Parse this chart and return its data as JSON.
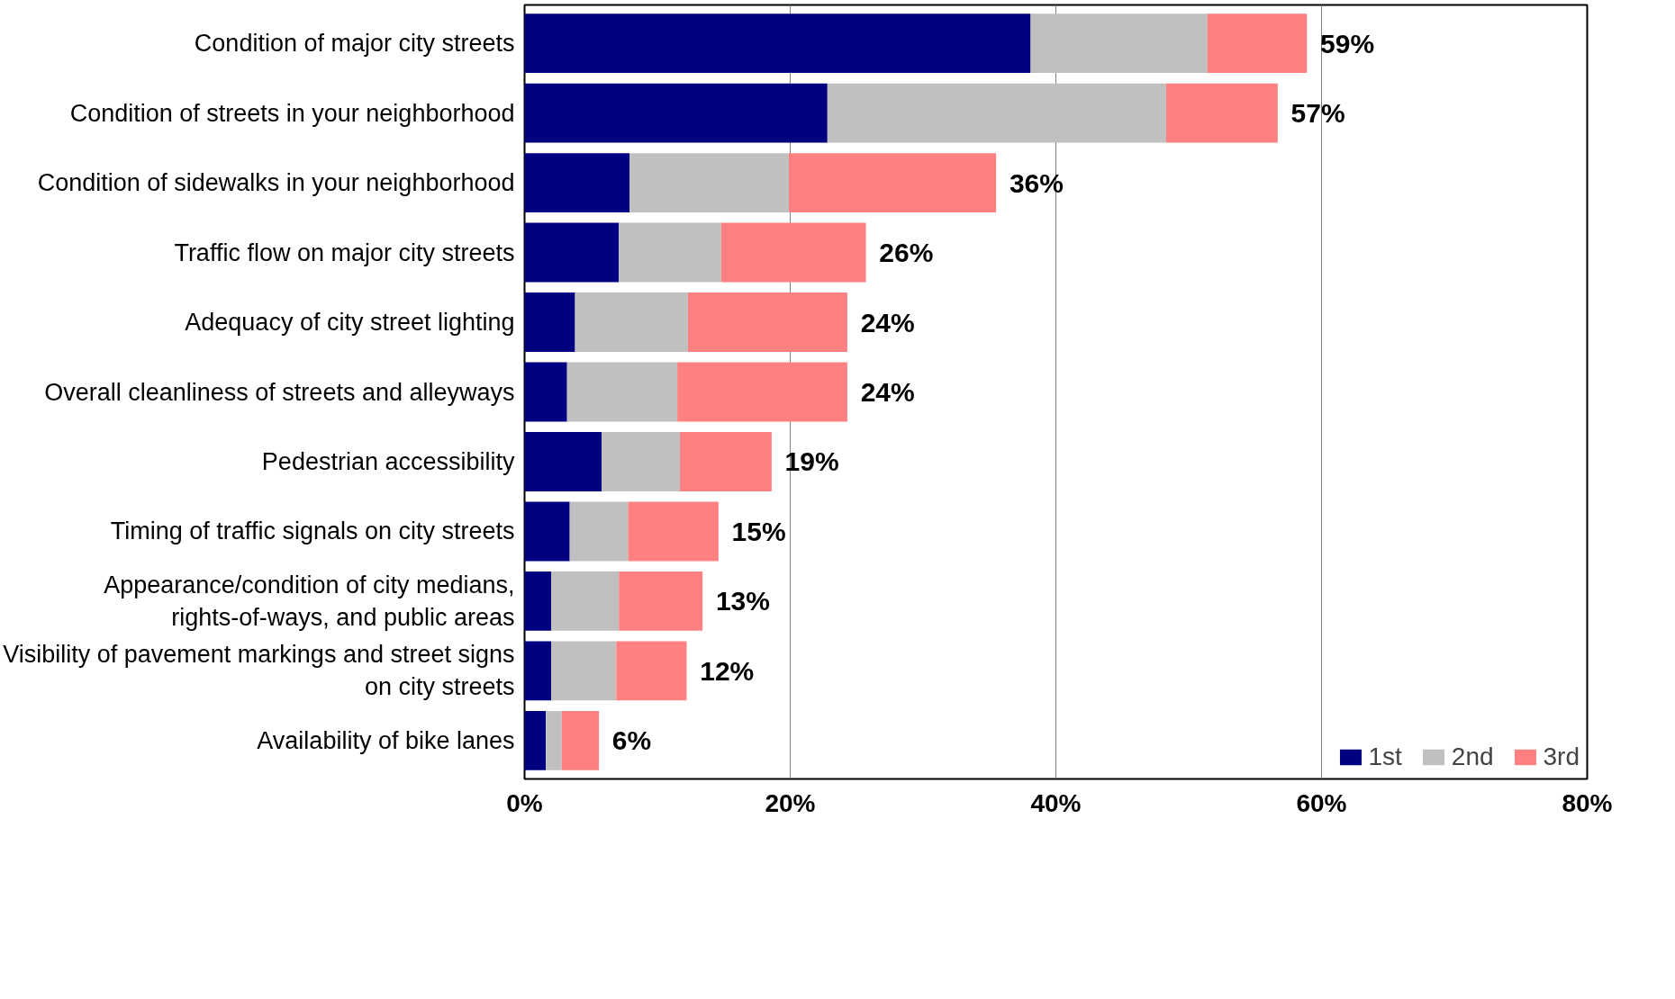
{
  "chart_data": {
    "type": "bar",
    "orientation": "horizontal",
    "stacked": true,
    "categories": [
      "Condition of major city streets",
      "Condition of streets in your neighborhood",
      "Condition of sidewalks in your neighborhood",
      "Traffic flow on major city streets",
      "Adequacy of city street lighting",
      "Overall cleanliness of streets and alleyways",
      "Pedestrian accessibility",
      "Timing of traffic signals on city streets",
      "Appearance/condition of city medians,\nrights-of-ways, and public areas",
      "Visibility of pavement markings and street signs\non city streets",
      "Availability of bike lanes"
    ],
    "series": [
      {
        "name": "1st",
        "color": "#000080",
        "values": [
          38.1,
          22.8,
          7.9,
          7.1,
          3.8,
          3.2,
          5.8,
          3.4,
          2.0,
          2.0,
          1.6
        ]
      },
      {
        "name": "2nd",
        "color": "#c0c0c0",
        "values": [
          13.3,
          25.5,
          12.0,
          7.7,
          8.5,
          8.3,
          5.9,
          4.4,
          5.1,
          4.9,
          1.2
        ]
      },
      {
        "name": "3rd",
        "color": "#ff8080",
        "values": [
          7.5,
          8.4,
          15.6,
          10.9,
          12.0,
          12.8,
          6.9,
          6.8,
          6.3,
          5.3,
          2.8
        ]
      }
    ],
    "totals": [
      "59%",
      "57%",
      "36%",
      "26%",
      "24%",
      "24%",
      "19%",
      "15%",
      "13%",
      "12%",
      "6%"
    ],
    "xlim": [
      0,
      80
    ],
    "xticks": [
      {
        "value": 0,
        "label": "0%"
      },
      {
        "value": 20,
        "label": "20%"
      },
      {
        "value": 40,
        "label": "40%"
      },
      {
        "value": 60,
        "label": "60%"
      },
      {
        "value": 80,
        "label": "80%"
      }
    ],
    "grid": "x",
    "legend": "bottom right"
  }
}
